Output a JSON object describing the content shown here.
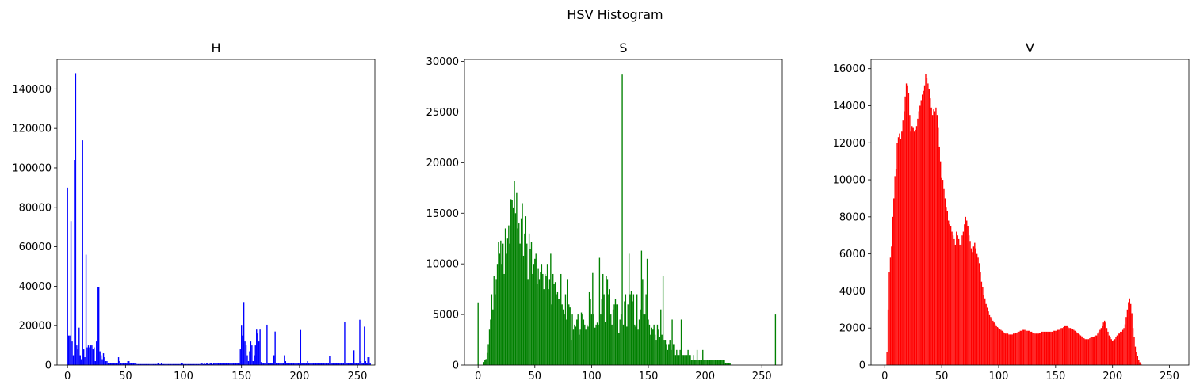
{
  "figure": {
    "suptitle": "HSV Histogram"
  },
  "chart_data": [
    {
      "type": "bar",
      "title": "H",
      "color": "#0000ff",
      "xlim": [
        -9,
        265
      ],
      "ylim": [
        0,
        155000
      ],
      "xticks": [
        0,
        50,
        100,
        150,
        200,
        250
      ],
      "yticks": [
        0,
        20000,
        40000,
        60000,
        80000,
        100000,
        120000,
        140000
      ],
      "values": [
        90000,
        15000,
        15000,
        73000,
        12000,
        5000,
        104000,
        148000,
        10000,
        8000,
        19000,
        5000,
        3000,
        114000,
        8000,
        4000,
        56000,
        9000,
        10000,
        9000,
        10000,
        10000,
        8000,
        9000,
        2000,
        12000,
        39500,
        39500,
        7000,
        5000,
        3000,
        6000,
        4000,
        2000,
        2000,
        1000,
        1000,
        1000,
        1000,
        1000,
        1000,
        1000,
        1000,
        1000,
        4000,
        2000,
        1000,
        1000,
        1000,
        1000,
        1000,
        1000,
        2000,
        2000,
        1000,
        1000,
        1000,
        1000,
        1000,
        1000,
        500,
        500,
        500,
        500,
        500,
        500,
        500,
        500,
        500,
        500,
        500,
        500,
        500,
        500,
        500,
        500,
        500,
        500,
        1000,
        500,
        500,
        1000,
        500,
        500,
        500,
        500,
        500,
        500,
        500,
        500,
        500,
        500,
        500,
        500,
        500,
        500,
        500,
        500,
        1000,
        1000,
        500,
        500,
        500,
        500,
        500,
        500,
        500,
        500,
        500,
        500,
        500,
        500,
        500,
        500,
        500,
        1000,
        1000,
        500,
        1000,
        500,
        1000,
        1000,
        500,
        1000,
        1000,
        500,
        1000,
        1000,
        1000,
        1000,
        1000,
        1000,
        1000,
        1000,
        1000,
        1000,
        1000,
        1000,
        1000,
        1000,
        1000,
        1000,
        1000,
        1000,
        1000,
        1000,
        1000,
        1000,
        1000,
        8000,
        20000,
        15000,
        32000,
        12000,
        10000,
        5000,
        2000,
        7000,
        12000,
        10000,
        2000,
        5000,
        10000,
        18000,
        16000,
        12000,
        18000,
        1500,
        1000,
        1000,
        1000,
        1000,
        20500,
        1000,
        1000,
        1000,
        1000,
        1000,
        5000,
        17000,
        1000,
        1000,
        1000,
        1000,
        1000,
        1000,
        1000,
        5000,
        2000,
        1000,
        1000,
        1000,
        1000,
        1000,
        1000,
        1000,
        1000,
        1000,
        1000,
        1000,
        1000,
        17800,
        1000,
        1000,
        1000,
        1000,
        1000,
        2000,
        1000,
        1000,
        1000,
        1000,
        1000,
        1000,
        1000,
        1000,
        1000,
        1000,
        1000,
        1000,
        1000,
        1000,
        1000,
        1000,
        1000,
        1000,
        4500,
        1000,
        1000,
        1000,
        1000,
        1000,
        1000,
        1000,
        1000,
        1000,
        1000,
        1000,
        1000,
        21800,
        1000,
        1000,
        1000,
        1000,
        1000,
        1000,
        1000,
        7500,
        1000,
        1000,
        1000,
        1000,
        23000,
        2000,
        1000,
        1000,
        19500,
        2000,
        1000,
        4000,
        4000,
        1000,
        0,
        0,
        0,
        0,
        0
      ]
    },
    {
      "type": "bar",
      "title": "S",
      "color": "#008000",
      "xlim": [
        -12,
        268
      ],
      "ylim": [
        0,
        30200
      ],
      "xticks": [
        0,
        50,
        100,
        150,
        200,
        250
      ],
      "yticks": [
        0,
        5000,
        10000,
        15000,
        20000,
        25000,
        30000
      ],
      "values": [
        6200,
        0,
        0,
        0,
        0,
        300,
        500,
        600,
        1200,
        2000,
        3500,
        4500,
        7000,
        5500,
        8800,
        7000,
        8500,
        10000,
        12200,
        11000,
        12300,
        10000,
        12000,
        9000,
        13500,
        11000,
        12500,
        13800,
        12000,
        16400,
        16300,
        15500,
        18200,
        15000,
        17000,
        13500,
        14000,
        12000,
        14500,
        16000,
        10800,
        13000,
        14700,
        12000,
        8500,
        13000,
        11500,
        12200,
        9000,
        10000,
        10500,
        11000,
        8000,
        9500,
        8500,
        9200,
        10000,
        9000,
        7500,
        9000,
        8800,
        10000,
        7500,
        8500,
        11000,
        6000,
        9000,
        8000,
        8200,
        7000,
        7200,
        6500,
        6500,
        9000,
        6000,
        5500,
        5000,
        7000,
        4500,
        8500,
        6000,
        5700,
        2500,
        5000,
        3500,
        4000,
        3800,
        4500,
        5000,
        3000,
        3500,
        5200,
        5000,
        4500,
        4000,
        3500,
        4000,
        3800,
        7200,
        6500,
        5000,
        9100,
        5000,
        3700,
        4000,
        4200,
        4000,
        10600,
        5000,
        6500,
        9000,
        7000,
        4300,
        8800,
        8500,
        7000,
        7500,
        5000,
        4000,
        5500,
        6000,
        6500,
        6000,
        6000,
        3200,
        4500,
        5000,
        28700,
        4000,
        6300,
        7000,
        3800,
        6000,
        11000,
        7000,
        7300,
        6300,
        7000,
        4000,
        3800,
        7000,
        3500,
        4500,
        5500,
        11300,
        8500,
        5000,
        5000,
        7000,
        10500,
        4500,
        4000,
        3000,
        3700,
        3500,
        4000,
        3000,
        2500,
        4000,
        3500,
        2800,
        5500,
        3000,
        8800,
        2500,
        2500,
        2000,
        1500,
        2000,
        2500,
        1500,
        4500,
        2000,
        2000,
        1000,
        1500,
        1000,
        1000,
        1500,
        4500,
        1000,
        1000,
        1000,
        1000,
        1000,
        1500,
        1000,
        1000,
        500,
        500,
        1000,
        500,
        500,
        1500,
        500,
        500,
        500,
        500,
        1500,
        500,
        500,
        500,
        500,
        500,
        500,
        500,
        500,
        500,
        500,
        500,
        500,
        500,
        500,
        500,
        500,
        500,
        500,
        500,
        200,
        200,
        200,
        200,
        200,
        0,
        0,
        0,
        0,
        0,
        0,
        0,
        0,
        0,
        0,
        0,
        0,
        0,
        0,
        0,
        0,
        0,
        0,
        0,
        0,
        0,
        0,
        0,
        0,
        0,
        0,
        0,
        0,
        0,
        0,
        0,
        0,
        0,
        0,
        0,
        0,
        0,
        0,
        0,
        5000
      ]
    },
    {
      "type": "bar",
      "title": "V",
      "color": "#ff0000",
      "xlim": [
        -12,
        267
      ],
      "ylim": [
        0,
        16500
      ],
      "xticks": [
        0,
        50,
        100,
        150,
        200,
        250
      ],
      "yticks": [
        0,
        2000,
        4000,
        6000,
        8000,
        10000,
        12000,
        14000,
        16000
      ],
      "values": [
        0,
        0,
        700,
        3000,
        5000,
        5800,
        6400,
        8000,
        9000,
        10200,
        10600,
        12000,
        12300,
        12500,
        12200,
        12600,
        13200,
        13700,
        14500,
        15200,
        15100,
        14700,
        13500,
        12600,
        12900,
        12800,
        12600,
        12700,
        12900,
        13300,
        13700,
        14000,
        14300,
        14600,
        14800,
        15100,
        15700,
        15500,
        15200,
        14900,
        14400,
        13900,
        13500,
        13800,
        13700,
        13900,
        13500,
        12800,
        11800,
        11000,
        10100,
        10000,
        9500,
        9000,
        8500,
        8300,
        7800,
        7600,
        7500,
        7200,
        7000,
        6800,
        6500,
        7200,
        7000,
        6800,
        6500,
        6500,
        7000,
        7200,
        7600,
        8000,
        7800,
        7500,
        7000,
        6700,
        6300,
        6100,
        6400,
        6600,
        6300,
        6000,
        5800,
        5500,
        5000,
        4500,
        4200,
        3800,
        3600,
        3300,
        3100,
        2900,
        2700,
        2600,
        2500,
        2400,
        2300,
        2200,
        2100,
        2050,
        2000,
        1950,
        1900,
        1850,
        1800,
        1750,
        1700,
        1700,
        1700,
        1650,
        1650,
        1650,
        1650,
        1700,
        1700,
        1750,
        1750,
        1800,
        1800,
        1850,
        1850,
        1900,
        1900,
        1900,
        1850,
        1850,
        1850,
        1850,
        1800,
        1800,
        1750,
        1750,
        1700,
        1700,
        1700,
        1700,
        1750,
        1750,
        1800,
        1800,
        1800,
        1800,
        1800,
        1800,
        1800,
        1800,
        1800,
        1800,
        1850,
        1850,
        1850,
        1850,
        1900,
        1900,
        1950,
        2000,
        2000,
        2050,
        2100,
        2100,
        2100,
        2050,
        2000,
        2000,
        1950,
        1950,
        1900,
        1850,
        1800,
        1750,
        1700,
        1650,
        1600,
        1550,
        1500,
        1450,
        1400,
        1400,
        1400,
        1400,
        1450,
        1500,
        1500,
        1500,
        1550,
        1600,
        1600,
        1700,
        1800,
        1900,
        2000,
        2100,
        2300,
        2400,
        2300,
        2000,
        1800,
        1600,
        1500,
        1400,
        1300,
        1350,
        1400,
        1500,
        1600,
        1700,
        1700,
        1800,
        1800,
        1900,
        2000,
        2200,
        2600,
        3000,
        3400,
        3600,
        3300,
        2800,
        2000,
        1500,
        1000,
        700,
        500,
        300,
        150,
        50,
        0,
        0,
        0,
        0,
        0,
        0,
        0,
        0,
        0,
        0,
        0,
        0,
        0,
        0,
        0,
        0,
        0,
        0,
        0,
        0,
        0,
        0,
        0,
        0,
        0,
        0,
        0
      ]
    }
  ]
}
